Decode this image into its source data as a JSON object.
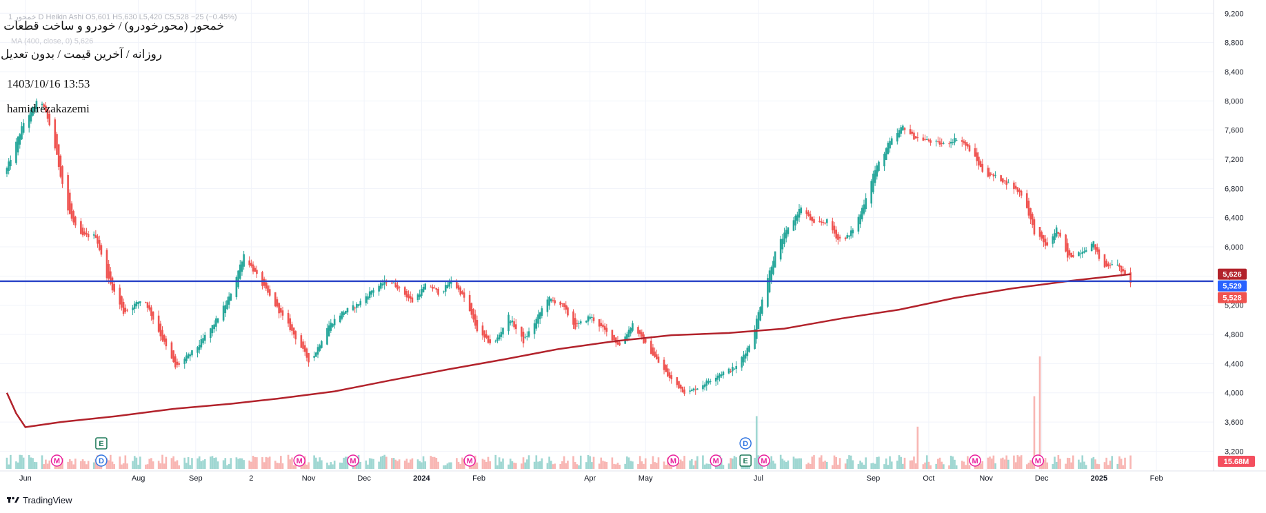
{
  "watermark": {
    "line1": "خمحور (محورخودرو) / خودرو و ساخت قطعات",
    "line2": "روزانه / آخرین قیمت / بدون تعدیل",
    "line3": "1403/10/16 13:53",
    "line4": "hamidrezakazemi"
  },
  "legend": {
    "symbol_line": "1  خمحور  D  Heikin Ashi  O5,601  H5,630  L5,420  C5,528  −25 (−0.45%)",
    "ma_line": "MA (400, close, 0)  5,626"
  },
  "branding": {
    "logo_text": "TradingView"
  },
  "colors": {
    "up": "#26a69a",
    "down": "#ef5350",
    "volume_up": "#9fd7d2",
    "volume_down": "#f8b6b3",
    "ma": "#b2222b",
    "hline": "#2d46c8",
    "grid": "#f0f3fa",
    "event_m": "#e91e9c",
    "event_d": "#2f74e0",
    "event_e": "#1f7a5a"
  },
  "chart_data": {
    "type": "candlestick",
    "chart_style": "Heikin Ashi",
    "timeframe": "D",
    "y_axis": {
      "position": "right",
      "ticks": [
        3200,
        3600,
        4000,
        4400,
        4800,
        5200,
        5600,
        6000,
        6400,
        6800,
        7200,
        7600,
        8000,
        8400,
        8800,
        9200
      ],
      "range": [
        3100,
        9250
      ]
    },
    "x_axis": {
      "range": [
        "2023-05-22",
        "2025-03-02"
      ],
      "ticks": [
        {
          "date": "2023-06-01",
          "label": "Jun"
        },
        {
          "date": "2023-08-01",
          "label": "Aug"
        },
        {
          "date": "2023-09-01",
          "label": "Sep"
        },
        {
          "date": "2023-10-01",
          "label": "2"
        },
        {
          "date": "2023-11-01",
          "label": "Nov"
        },
        {
          "date": "2023-12-01",
          "label": "Dec"
        },
        {
          "date": "2024-01-01",
          "label": "2024"
        },
        {
          "date": "2024-02-01",
          "label": "Feb"
        },
        {
          "date": "2024-04-01",
          "label": "Apr"
        },
        {
          "date": "2024-05-01",
          "label": "May"
        },
        {
          "date": "2024-07-01",
          "label": "Jul"
        },
        {
          "date": "2024-09-01",
          "label": "Sep"
        },
        {
          "date": "2024-10-01",
          "label": "Oct"
        },
        {
          "date": "2024-11-01",
          "label": "Nov"
        },
        {
          "date": "2024-12-01",
          "label": "Dec"
        },
        {
          "date": "2025-01-01",
          "label": "2025"
        },
        {
          "date": "2025-02-01",
          "label": "Feb"
        }
      ]
    },
    "price_path": [
      [
        "2023-05-22",
        7000
      ],
      [
        "2023-06-01",
        7700
      ],
      [
        "2023-06-10",
        8050
      ],
      [
        "2023-06-16",
        7600
      ],
      [
        "2023-06-25",
        6500
      ],
      [
        "2023-07-01",
        6150
      ],
      [
        "2023-07-10",
        6150
      ],
      [
        "2023-07-16",
        5600
      ],
      [
        "2023-07-25",
        5100
      ],
      [
        "2023-08-05",
        5300
      ],
      [
        "2023-08-12",
        4900
      ],
      [
        "2023-08-22",
        4350
      ],
      [
        "2023-09-02",
        4600
      ],
      [
        "2023-09-12",
        4950
      ],
      [
        "2023-09-20",
        5300
      ],
      [
        "2023-09-28",
        5900
      ],
      [
        "2023-10-05",
        5600
      ],
      [
        "2023-10-15",
        5200
      ],
      [
        "2023-10-25",
        4800
      ],
      [
        "2023-11-03",
        4400
      ],
      [
        "2023-11-12",
        4900
      ],
      [
        "2023-11-20",
        5100
      ],
      [
        "2023-11-28",
        5200
      ],
      [
        "2023-12-06",
        5400
      ],
      [
        "2023-12-15",
        5550
      ],
      [
        "2023-12-20",
        5450
      ],
      [
        "2023-12-28",
        5250
      ],
      [
        "2024-01-05",
        5500
      ],
      [
        "2024-01-12",
        5350
      ],
      [
        "2024-01-18",
        5550
      ],
      [
        "2024-01-25",
        5300
      ],
      [
        "2024-02-02",
        4800
      ],
      [
        "2024-02-10",
        4650
      ],
      [
        "2024-02-18",
        5050
      ],
      [
        "2024-02-26",
        4700
      ],
      [
        "2024-03-05",
        5050
      ],
      [
        "2024-03-10",
        5300
      ],
      [
        "2024-03-18",
        5200
      ],
      [
        "2024-03-25",
        4900
      ],
      [
        "2024-04-02",
        5050
      ],
      [
        "2024-04-10",
        4850
      ],
      [
        "2024-04-18",
        4650
      ],
      [
        "2024-04-25",
        4950
      ],
      [
        "2024-05-01",
        4700
      ],
      [
        "2024-05-08",
        4450
      ],
      [
        "2024-05-15",
        4200
      ],
      [
        "2024-05-24",
        3990
      ],
      [
        "2024-06-01",
        4100
      ],
      [
        "2024-06-10",
        4250
      ],
      [
        "2024-06-20",
        4350
      ],
      [
        "2024-06-28",
        4700
      ],
      [
        "2024-07-06",
        5500
      ],
      [
        "2024-07-12",
        6000
      ],
      [
        "2024-07-18",
        6250
      ],
      [
        "2024-07-25",
        6550
      ],
      [
        "2024-08-01",
        6300
      ],
      [
        "2024-08-08",
        6350
      ],
      [
        "2024-08-14",
        6100
      ],
      [
        "2024-08-20",
        6150
      ],
      [
        "2024-08-26",
        6450
      ],
      [
        "2024-09-02",
        7000
      ],
      [
        "2024-09-10",
        7400
      ],
      [
        "2024-09-18",
        7650
      ],
      [
        "2024-09-24",
        7500
      ],
      [
        "2024-10-02",
        7450
      ],
      [
        "2024-10-10",
        7400
      ],
      [
        "2024-10-18",
        7500
      ],
      [
        "2024-10-25",
        7300
      ],
      [
        "2024-11-01",
        7000
      ],
      [
        "2024-11-08",
        6950
      ],
      [
        "2024-11-15",
        6850
      ],
      [
        "2024-11-22",
        6700
      ],
      [
        "2024-11-28",
        6200
      ],
      [
        "2024-12-05",
        6000
      ],
      [
        "2024-12-10",
        6250
      ],
      [
        "2024-12-16",
        5850
      ],
      [
        "2024-12-24",
        5950
      ],
      [
        "2024-12-30",
        6050
      ],
      [
        "2025-01-04",
        5700
      ],
      [
        "2025-01-10",
        5800
      ],
      [
        "2025-01-15",
        5640
      ],
      [
        "2025-01-18",
        5528
      ]
    ],
    "ma_400": {
      "name": "MA (400, close, 0)",
      "points": [
        [
          "2023-05-22",
          4000
        ],
        [
          "2023-05-27",
          3720
        ],
        [
          "2023-06-01",
          3530
        ],
        [
          "2023-06-20",
          3600
        ],
        [
          "2023-07-20",
          3680
        ],
        [
          "2023-08-20",
          3780
        ],
        [
          "2023-09-20",
          3850
        ],
        [
          "2023-10-15",
          3920
        ],
        [
          "2023-11-15",
          4020
        ],
        [
          "2023-12-15",
          4170
        ],
        [
          "2024-01-15",
          4320
        ],
        [
          "2024-02-15",
          4460
        ],
        [
          "2024-03-15",
          4600
        ],
        [
          "2024-04-15",
          4710
        ],
        [
          "2024-05-15",
          4790
        ],
        [
          "2024-06-15",
          4820
        ],
        [
          "2024-07-15",
          4880
        ],
        [
          "2024-08-15",
          5020
        ],
        [
          "2024-09-15",
          5140
        ],
        [
          "2024-10-15",
          5300
        ],
        [
          "2024-11-15",
          5430
        ],
        [
          "2024-12-15",
          5530
        ],
        [
          "2025-01-18",
          5626
        ]
      ],
      "last_value": 5626
    },
    "horizontal_line": {
      "value": 5529
    },
    "price_tags": [
      {
        "value": 5626,
        "label": "5,626",
        "color": "#b2222b"
      },
      {
        "value": 5529,
        "label": "5,529",
        "color": "#2962ff"
      },
      {
        "value": 5528,
        "label": "5,528",
        "color": "#ef5350"
      }
    ],
    "volume": {
      "last_label": "15.68M",
      "spikes": [
        {
          "date": "2024-11-27",
          "relative": 0.62
        },
        {
          "date": "2024-11-30",
          "relative": 0.96
        },
        {
          "date": "2024-06-30",
          "relative": 0.45
        },
        {
          "date": "2024-09-25",
          "relative": 0.36
        }
      ]
    },
    "events": [
      {
        "date": "2023-06-18",
        "label": "M",
        "kind": "m"
      },
      {
        "date": "2023-07-12",
        "label": "D",
        "kind": "d"
      },
      {
        "date": "2023-07-12",
        "label": "E",
        "kind": "e",
        "stacked": true
      },
      {
        "date": "2023-10-27",
        "label": "M",
        "kind": "m"
      },
      {
        "date": "2023-11-25",
        "label": "M",
        "kind": "m"
      },
      {
        "date": "2024-01-27",
        "label": "M",
        "kind": "m"
      },
      {
        "date": "2024-05-16",
        "label": "M",
        "kind": "m"
      },
      {
        "date": "2024-06-08",
        "label": "M",
        "kind": "m"
      },
      {
        "date": "2024-06-24",
        "label": "E",
        "kind": "e"
      },
      {
        "date": "2024-06-24",
        "label": "D",
        "kind": "d",
        "stacked": true
      },
      {
        "date": "2024-07-04",
        "label": "M",
        "kind": "m"
      },
      {
        "date": "2024-10-26",
        "label": "M",
        "kind": "m"
      },
      {
        "date": "2024-11-29",
        "label": "M",
        "kind": "m"
      }
    ]
  }
}
